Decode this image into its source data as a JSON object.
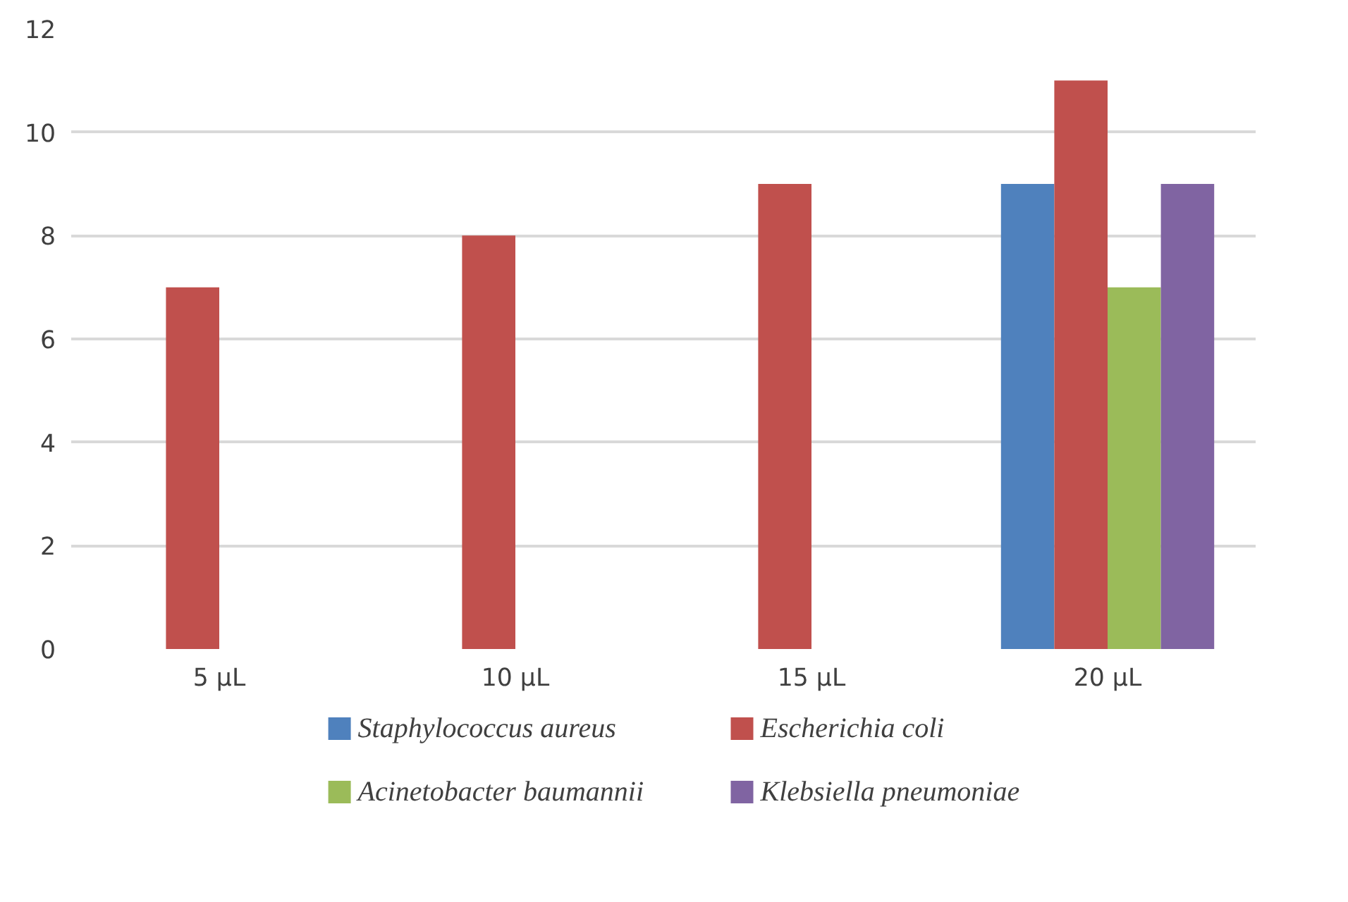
{
  "chart_data": {
    "type": "bar",
    "categories": [
      "5 µL",
      "10 µL",
      "15 µL",
      "20 µL"
    ],
    "series": [
      {
        "name": "Staphylococcus aureus",
        "color": "#4f81bd",
        "values": [
          0,
          0,
          0,
          9
        ]
      },
      {
        "name": "Escherichia coli",
        "color": "#c0504d",
        "values": [
          7,
          8,
          9,
          11
        ]
      },
      {
        "name": "Acinetobacter baumannii",
        "color": "#9bbb59",
        "values": [
          0,
          0,
          0,
          7
        ]
      },
      {
        "name": "Klebsiella pneumoniae",
        "color": "#8064a2",
        "values": [
          0,
          0,
          0,
          9
        ]
      }
    ],
    "ylim": [
      0,
      12
    ],
    "yticks": [
      0,
      2,
      4,
      6,
      8,
      10,
      12
    ],
    "grid": "y",
    "legend": "bottom"
  }
}
